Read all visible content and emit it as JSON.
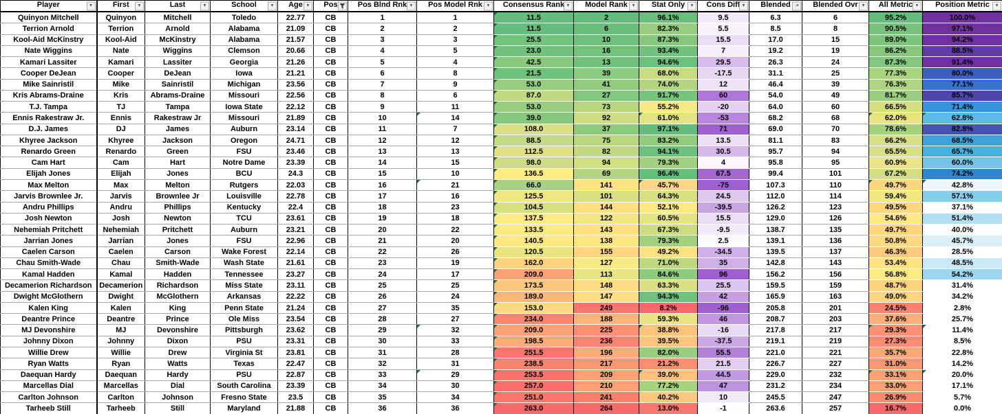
{
  "sheet": {
    "columns": [
      {
        "key": "player",
        "label": "Player",
        "width": 140,
        "icon": "dropdown"
      },
      {
        "key": "first",
        "label": "First",
        "width": 70,
        "icon": "dropdown"
      },
      {
        "key": "last",
        "label": "Last",
        "width": 95,
        "icon": "dropdown"
      },
      {
        "key": "school",
        "label": "School",
        "width": 98,
        "icon": "dropdown"
      },
      {
        "key": "age",
        "label": "Age",
        "width": 52,
        "icon": "dropdown"
      },
      {
        "key": "pos",
        "label": "Pos",
        "width": 50,
        "icon": "funnel"
      },
      {
        "key": "pos_blnd",
        "label": "Pos Blnd Rnk",
        "width": 100,
        "icon": "dropdown"
      },
      {
        "key": "pos_model",
        "label": "Pos Model Rnk",
        "width": 112,
        "icon": "dropdown"
      },
      {
        "key": "consensus",
        "label": "Consensus Rank",
        "width": 116,
        "icon": "dropdown"
      },
      {
        "key": "model_rank",
        "label": "Model Rank",
        "width": 95,
        "icon": "dropdown"
      },
      {
        "key": "stat_only",
        "label": "Stat Only",
        "width": 85,
        "icon": "dropdown",
        "percent": true
      },
      {
        "key": "cons_diff",
        "label": "Cons Diff",
        "width": 75,
        "icon": "dropdown"
      },
      {
        "key": "blended",
        "label": "Blended",
        "width": 77,
        "icon": "sort"
      },
      {
        "key": "blended_ovr",
        "label": "Blended Ovr",
        "width": 97,
        "icon": "dropdown"
      },
      {
        "key": "all_metric",
        "label": "All Metric",
        "width": 78,
        "icon": "dropdown",
        "percent": true
      },
      {
        "key": "position_metric",
        "label": "Position Metric",
        "width": 116,
        "icon": "dropdown",
        "percent": true
      }
    ],
    "rows": [
      [
        "Quinyon Mitchell",
        "Quinyon",
        "Mitchell",
        "Toledo",
        "22.77",
        "CB",
        "1",
        "1",
        "11.5",
        "2",
        "96.1",
        "9.5",
        "6.3",
        "6",
        "95.2",
        "100.0"
      ],
      [
        "Terrion Arnold",
        "Terrion",
        "Arnold",
        "Alabama",
        "21.09",
        "CB",
        "2",
        "2",
        "11.5",
        "6",
        "82.3",
        "5.5",
        "8.5",
        "8",
        "90.5",
        "97.1"
      ],
      [
        "Kool-Aid McKinstry",
        "Kool-Aid",
        "McKinstry",
        "Alabama",
        "21.57",
        "CB",
        "3",
        "3",
        "25.5",
        "10",
        "87.3",
        "15.5",
        "17.0",
        "15",
        "89.0",
        "94.2"
      ],
      [
        "Nate Wiggins",
        "Nate",
        "Wiggins",
        "Clemson",
        "20.66",
        "CB",
        "4",
        "5",
        "23.0",
        "16",
        "93.4",
        "7",
        "19.2",
        "19",
        "86.2",
        "88.5"
      ],
      [
        "Kamari Lassiter",
        "Kamari",
        "Lassiter",
        "Georgia",
        "21.26",
        "CB",
        "5",
        "4",
        "42.5",
        "13",
        "94.6",
        "29.5",
        "26.3",
        "24",
        "87.3",
        "91.4"
      ],
      [
        "Cooper DeJean",
        "Cooper",
        "DeJean",
        "Iowa",
        "21.21",
        "CB",
        "6",
        "8",
        "21.5",
        "39",
        "68.0",
        "-17.5",
        "31.1",
        "25",
        "77.3",
        "80.0"
      ],
      [
        "Mike Sainristil",
        "Mike",
        "Sainristil",
        "Michigan",
        "23.56",
        "CB",
        "7",
        "9",
        "53.0",
        "41",
        "74.0",
        "12",
        "46.4",
        "39",
        "76.3",
        "77.1"
      ],
      [
        "Kris Abrams-Draine",
        "Kris",
        "Abrams-Draine",
        "Missouri",
        "22.56",
        "CB",
        "8",
        "6",
        "87.0",
        "27",
        "91.7",
        "60",
        "54.0",
        "49",
        "81.7",
        "85.7"
      ],
      [
        "T.J. Tampa",
        "TJ",
        "Tampa",
        "Iowa State",
        "22.12",
        "CB",
        "9",
        "11",
        "53.0",
        "73",
        "55.2",
        "-20",
        "64.0",
        "60",
        "66.5",
        "71.4"
      ],
      [
        "Ennis Rakestraw Jr.",
        "Ennis",
        "Rakestraw Jr",
        "Missouri",
        "21.89",
        "CB",
        "10",
        "14",
        "39.0",
        "92",
        "61.0",
        "-53",
        "68.2",
        "68",
        "62.0",
        "62.8"
      ],
      [
        "D.J. James",
        "DJ",
        "James",
        "Auburn",
        "23.14",
        "CB",
        "11",
        "7",
        "108.0",
        "37",
        "97.1",
        "71",
        "69.0",
        "70",
        "78.6",
        "82.8"
      ],
      [
        "Khyree Jackson",
        "Khyree",
        "Jackson",
        "Oregon",
        "24.71",
        "CB",
        "12",
        "12",
        "88.5",
        "75",
        "83.2",
        "13.5",
        "81.1",
        "83",
        "66.2",
        "68.5"
      ],
      [
        "Renardo Green",
        "Renardo",
        "Green",
        "FSU",
        "23.46",
        "CB",
        "13",
        "13",
        "112.5",
        "82",
        "94.1",
        "30.5",
        "95.7",
        "94",
        "65.5",
        "65.7"
      ],
      [
        "Cam Hart",
        "Cam",
        "Hart",
        "Notre Dame",
        "23.39",
        "CB",
        "14",
        "15",
        "98.0",
        "94",
        "79.3",
        "4",
        "95.8",
        "95",
        "60.9",
        "60.0"
      ],
      [
        "Elijah Jones",
        "Elijah",
        "Jones",
        "BCU",
        "24.3",
        "CB",
        "15",
        "10",
        "136.5",
        "69",
        "96.4",
        "67.5",
        "99.4",
        "101",
        "67.2",
        "74.2"
      ],
      [
        "Max Melton",
        "Max",
        "Melton",
        "Rutgers",
        "22.03",
        "CB",
        "16",
        "21",
        "66.0",
        "141",
        "45.7",
        "-75",
        "107.3",
        "110",
        "49.7",
        "42.8"
      ],
      [
        "Jarvis Brownlee Jr.",
        "Jarvis",
        "Brownlee Jr",
        "Louisville",
        "22.78",
        "CB",
        "17",
        "16",
        "125.5",
        "101",
        "64.3",
        "24.5",
        "112.0",
        "114",
        "59.4",
        "57.1"
      ],
      [
        "Andru Phillips",
        "Andru",
        "Phillips",
        "Kentucky",
        "22.4",
        "CB",
        "18",
        "23",
        "104.5",
        "144",
        "52.1",
        "-39.5",
        "126.2",
        "123",
        "49.5",
        "37.1"
      ],
      [
        "Josh Newton",
        "Josh",
        "Newton",
        "TCU",
        "23.61",
        "CB",
        "19",
        "18",
        "137.5",
        "122",
        "60.5",
        "15.5",
        "129.0",
        "126",
        "54.6",
        "51.4"
      ],
      [
        "Nehemiah Pritchett",
        "Nehemiah",
        "Pritchett",
        "Auburn",
        "23.21",
        "CB",
        "20",
        "22",
        "133.5",
        "143",
        "67.3",
        "-9.5",
        "138.7",
        "135",
        "49.7",
        "40.0"
      ],
      [
        "Jarrian Jones",
        "Jarrian",
        "Jones",
        "FSU",
        "22.96",
        "CB",
        "21",
        "20",
        "140.5",
        "138",
        "79.3",
        "2.5",
        "139.1",
        "136",
        "50.8",
        "45.7"
      ],
      [
        "Caelen Carson",
        "Caelen",
        "Carson",
        "Wake Forest",
        "22.14",
        "CB",
        "22",
        "26",
        "120.5",
        "155",
        "49.2",
        "-34.5",
        "139.5",
        "137",
        "46.3",
        "28.5"
      ],
      [
        "Chau Smith-Wade",
        "Chau",
        "Smith-Wade",
        "Wash State",
        "21.61",
        "CB",
        "23",
        "19",
        "162.0",
        "127",
        "71.0",
        "35",
        "142.8",
        "143",
        "53.4",
        "48.5"
      ],
      [
        "Kamal Hadden",
        "Kamal",
        "Hadden",
        "Tennessee",
        "23.27",
        "CB",
        "24",
        "17",
        "209.0",
        "113",
        "84.6",
        "96",
        "156.2",
        "156",
        "56.8",
        "54.2"
      ],
      [
        "Decamerion Richardson",
        "Decamerion",
        "Richardson",
        "Miss State",
        "23.11",
        "CB",
        "25",
        "25",
        "173.5",
        "148",
        "63.3",
        "25.5",
        "159.5",
        "159",
        "48.7",
        "31.4"
      ],
      [
        "Dwight McGlothern",
        "Dwight",
        "McGlothern",
        "Arkansas",
        "22.22",
        "CB",
        "26",
        "24",
        "189.0",
        "147",
        "94.3",
        "42",
        "165.9",
        "163",
        "49.0",
        "34.2"
      ],
      [
        "Kalen King",
        "Kalen",
        "King",
        "Penn State",
        "21.24",
        "CB",
        "27",
        "35",
        "153.0",
        "249",
        "8.2",
        "-96",
        "205.8",
        "201",
        "24.5",
        "2.8"
      ],
      [
        "Deantre Prince",
        "Deantre",
        "Prince",
        "Ole Miss",
        "23.54",
        "CB",
        "28",
        "27",
        "234.0",
        "188",
        "59.3",
        "46",
        "208.7",
        "203",
        "37.6",
        "25.7"
      ],
      [
        "MJ Devonshire",
        "MJ",
        "Devonshire",
        "Pittsburgh",
        "23.62",
        "CB",
        "29",
        "32",
        "209.0",
        "225",
        "38.8",
        "-16",
        "217.8",
        "217",
        "29.3",
        "11.4"
      ],
      [
        "Johnny Dixon",
        "Johnny",
        "Dixon",
        "PSU",
        "23.31",
        "CB",
        "30",
        "33",
        "198.5",
        "236",
        "39.5",
        "-37.5",
        "219.1",
        "219",
        "27.3",
        "8.5"
      ],
      [
        "Willie Drew",
        "Willie",
        "Drew",
        "Virginia St",
        "23.81",
        "CB",
        "31",
        "28",
        "251.5",
        "196",
        "82.0",
        "55.5",
        "221.0",
        "221",
        "35.7",
        "22.8"
      ],
      [
        "Ryan Watts",
        "Ryan",
        "Watts",
        "Texas",
        "22.47",
        "CB",
        "32",
        "31",
        "238.5",
        "217",
        "21.2",
        "21.5",
        "226.7",
        "227",
        "31.0",
        "14.2"
      ],
      [
        "Daequan Hardy",
        "Daequan",
        "Hardy",
        "PSU",
        "22.87",
        "CB",
        "33",
        "29",
        "253.5",
        "209",
        "39.0",
        "44.5",
        "229.0",
        "232",
        "33.1",
        "20.0"
      ],
      [
        "Marcellas Dial",
        "Marcellas",
        "Dial",
        "South Carolina",
        "23.39",
        "CB",
        "34",
        "30",
        "257.0",
        "210",
        "77.2",
        "47",
        "231.2",
        "234",
        "33.0",
        "17.1"
      ],
      [
        "Carlton Johnson",
        "Carlton",
        "Johnson",
        "Fresno State",
        "23.5",
        "CB",
        "35",
        "34",
        "251.0",
        "241",
        "40.2",
        "10",
        "245.5",
        "247",
        "26.9",
        "5.7"
      ],
      [
        "Tarheeb Still",
        "Tarheeb",
        "Still",
        "Maryland",
        "21.88",
        "CB",
        "36",
        "36",
        "263.0",
        "264",
        "13.0",
        "-1",
        "263.6",
        "257",
        "16.7",
        "0.0"
      ]
    ],
    "scales": {
      "ryg": {
        "red": "#F8696B",
        "yellow": "#FFEB84",
        "green": "#63BE7B"
      },
      "consensus": {
        "min": 11.5,
        "max": 263.0,
        "invert": true
      },
      "model_rank": {
        "min": 2,
        "max": 264,
        "invert": true
      },
      "stat_only": {
        "min": 8.2,
        "max": 97.1,
        "invert": false
      },
      "all_metric": {
        "min": 16.7,
        "max": 95.2,
        "invert": false
      },
      "cons_diff": {
        "max_abs": 70,
        "low": "#FFFFFF",
        "high": "#A05FD0"
      },
      "position_metric": {
        "stops": [
          [
            40,
            "#FFFFFF"
          ],
          [
            48,
            "#CDEAF7"
          ],
          [
            57,
            "#86CFEC"
          ],
          [
            66,
            "#45B0E3"
          ],
          [
            74,
            "#2E86D0"
          ],
          [
            80,
            "#3D5FC2"
          ],
          [
            86,
            "#4F46A8"
          ],
          [
            91,
            "#7030A0"
          ],
          [
            100,
            "#7030A0"
          ]
        ]
      }
    },
    "comment_flags": {
      "all_rows_columns": [
        "consensus"
      ],
      "extra_flag_rows": [
        10,
        16,
        29,
        33
      ],
      "extra_flag_columns": [
        "pos_model",
        "stat_only",
        "all_metric",
        "position_metric"
      ]
    },
    "icons": {
      "dropdown": "filter-dropdown-icon",
      "funnel": "filter-funnel-icon",
      "sort": "sort-filter-icon"
    }
  }
}
